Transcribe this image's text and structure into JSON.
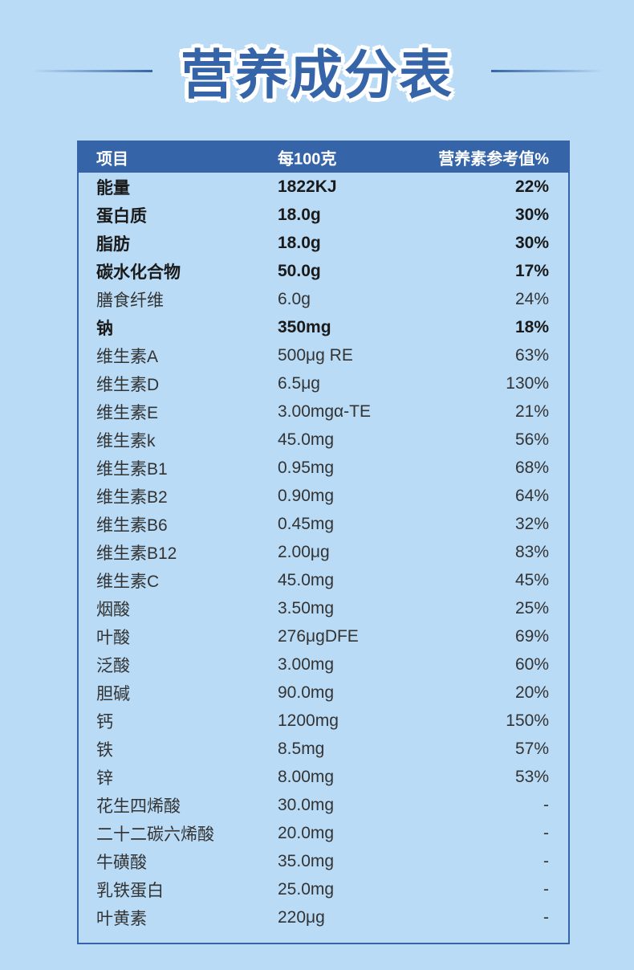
{
  "title": "营养成分表",
  "colors": {
    "background": "#b9dbf5",
    "accent": "#3565a8"
  },
  "table": {
    "headers": [
      "项目",
      "每100克",
      "营养素参考值%"
    ],
    "rows": [
      {
        "item": "能量",
        "per100g": "1822KJ",
        "nrv": "22%",
        "bold": true
      },
      {
        "item": "蛋白质",
        "per100g": "18.0g",
        "nrv": "30%",
        "bold": true
      },
      {
        "item": "脂肪",
        "per100g": "18.0g",
        "nrv": "30%",
        "bold": true
      },
      {
        "item": "碳水化合物",
        "per100g": "50.0g",
        "nrv": "17%",
        "bold": true
      },
      {
        "item": "膳食纤维",
        "per100g": "6.0g",
        "nrv": "24%",
        "bold": false
      },
      {
        "item": "钠",
        "per100g": "350mg",
        "nrv": "18%",
        "bold": true
      },
      {
        "item": "维生素A",
        "per100g": "500μg RE",
        "nrv": "63%",
        "bold": false
      },
      {
        "item": "维生素D",
        "per100g": "6.5μg",
        "nrv": "130%",
        "bold": false
      },
      {
        "item": "维生素E",
        "per100g": "3.00mgα-TE",
        "nrv": "21%",
        "bold": false
      },
      {
        "item": "维生素k",
        "per100g": "45.0mg",
        "nrv": "56%",
        "bold": false
      },
      {
        "item": "维生素B1",
        "per100g": "0.95mg",
        "nrv": "68%",
        "bold": false
      },
      {
        "item": "维生素B2",
        "per100g": "0.90mg",
        "nrv": "64%",
        "bold": false
      },
      {
        "item": "维生素B6",
        "per100g": "0.45mg",
        "nrv": "32%",
        "bold": false
      },
      {
        "item": "维生素B12",
        "per100g": "2.00μg",
        "nrv": "83%",
        "bold": false
      },
      {
        "item": "维生素C",
        "per100g": "45.0mg",
        "nrv": "45%",
        "bold": false
      },
      {
        "item": "烟酸",
        "per100g": "3.50mg",
        "nrv": "25%",
        "bold": false
      },
      {
        "item": "叶酸",
        "per100g": "276μgDFE",
        "nrv": "69%",
        "bold": false
      },
      {
        "item": "泛酸",
        "per100g": "3.00mg",
        "nrv": "60%",
        "bold": false
      },
      {
        "item": "胆碱",
        "per100g": "90.0mg",
        "nrv": "20%",
        "bold": false
      },
      {
        "item": "钙",
        "per100g": "1200mg",
        "nrv": "150%",
        "bold": false
      },
      {
        "item": "铁",
        "per100g": "8.5mg",
        "nrv": "57%",
        "bold": false
      },
      {
        "item": "锌",
        "per100g": "8.00mg",
        "nrv": "53%",
        "bold": false
      },
      {
        "item": "花生四烯酸",
        "per100g": "30.0mg",
        "nrv": "-",
        "bold": false
      },
      {
        "item": "二十二碳六烯酸",
        "per100g": "20.0mg",
        "nrv": "-",
        "bold": false
      },
      {
        "item": "牛磺酸",
        "per100g": "35.0mg",
        "nrv": "-",
        "bold": false
      },
      {
        "item": "乳铁蛋白",
        "per100g": "25.0mg",
        "nrv": "-",
        "bold": false
      },
      {
        "item": "叶黄素",
        "per100g": "220μg",
        "nrv": "-",
        "bold": false
      }
    ]
  }
}
